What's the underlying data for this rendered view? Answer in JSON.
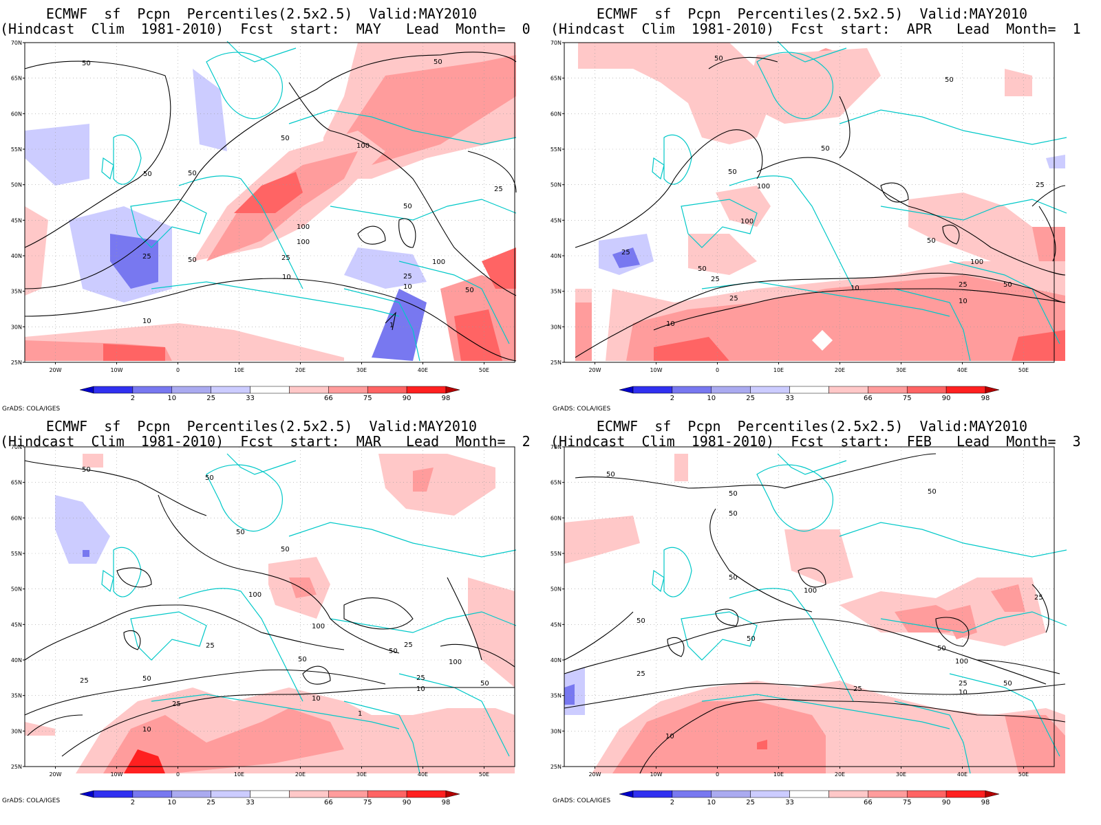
{
  "software_credit": "GrADS: COLA/IGES",
  "panels": [
    {
      "title_line1": "ECMWF  sf  Pcpn  Percentiles(2.5x2.5)  Valid:MAY2010",
      "title_line2": "(Hindcast  Clim  1981-2010)  Fcst  start:  MAY   Lead  Month=  0"
    },
    {
      "title_line1": "ECMWF  sf  Pcpn  Percentiles(2.5x2.5)  Valid:MAY2010",
      "title_line2": "(Hindcast  Clim  1981-2010)  Fcst  start:  APR   Lead  Month=  1"
    },
    {
      "title_line1": "ECMWF  sf  Pcpn  Percentiles(2.5x2.5)  Valid:MAY2010",
      "title_line2": "(Hindcast  Clim  1981-2010)  Fcst  start:  MAR   Lead  Month=  2"
    },
    {
      "title_line1": "ECMWF  sf  Pcpn  Percentiles(2.5x2.5)  Valid:MAY2010",
      "title_line2": "(Hindcast  Clim  1981-2010)  Fcst  start:  FEB   Lead  Month=  3"
    }
  ],
  "lat_labels": [
    "70N",
    "65N",
    "60N",
    "55N",
    "50N",
    "45N",
    "40N",
    "35N",
    "30N",
    "25N"
  ],
  "lon_labels": [
    "20W",
    "10W",
    "0",
    "10E",
    "20E",
    "30E",
    "40E",
    "50E"
  ],
  "colorbar": {
    "labels": [
      "2",
      "10",
      "25",
      "33",
      "66",
      "75",
      "90",
      "98"
    ],
    "colors": [
      "#0000c8",
      "#3030f0",
      "#7878f0",
      "#aaaaf0",
      "#ccccff",
      "#ffffff",
      "#ffc8c8",
      "#ff9c9c",
      "#ff6464",
      "#ff2020",
      "#b40000"
    ]
  },
  "colors": {
    "coast": "#00c8c8",
    "contour": "#000000"
  },
  "contour_labels": [
    [
      "50",
      "50",
      "50",
      "100",
      "50",
      "25",
      "50",
      "100",
      "100",
      "50",
      "25",
      "10",
      "50",
      "100",
      "25",
      "10",
      "50",
      "10",
      "1",
      "25"
    ],
    [
      "50",
      "50",
      "50",
      "100",
      "100",
      "25",
      "50",
      "50",
      "100",
      "50",
      "25",
      "25",
      "10",
      "10",
      "25",
      "10",
      "50",
      "25"
    ],
    [
      "50",
      "50",
      "50",
      "100",
      "100",
      "50",
      "25",
      "25",
      "50",
      "10",
      "10",
      "25",
      "50",
      "100",
      "25",
      "50",
      "25",
      "10",
      "1",
      "50"
    ],
    [
      "50",
      "50",
      "50",
      "50",
      "100",
      "50",
      "50",
      "25",
      "50",
      "25",
      "10",
      "10",
      "25",
      "100",
      "50",
      "50",
      "25"
    ]
  ]
}
